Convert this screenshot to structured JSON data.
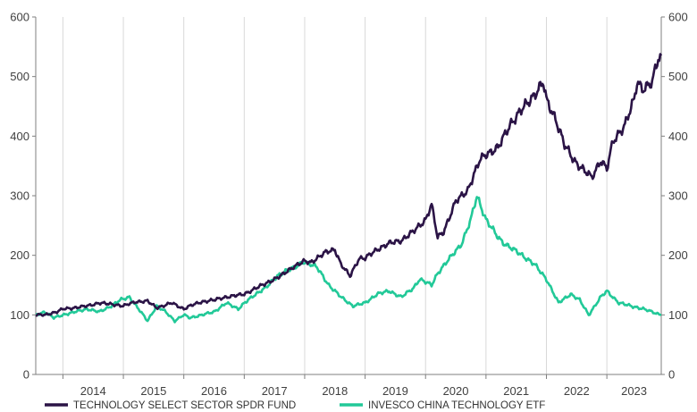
{
  "chart_data": {
    "type": "line",
    "title": "",
    "xlabel": "",
    "ylabel": "",
    "ylim": [
      0,
      600
    ],
    "yticks": [
      0,
      100,
      200,
      300,
      400,
      500,
      600
    ],
    "ytick_labels": [
      "0",
      "100",
      "200",
      "300",
      "400",
      "500",
      "600"
    ],
    "xlim": [
      2013.55,
      2023.9
    ],
    "xticks": [
      "2014",
      "2015",
      "2016",
      "2017",
      "2018",
      "2019",
      "2020",
      "2021",
      "2022",
      "2023"
    ],
    "grid": {
      "vertical": true,
      "horizontal": false
    },
    "axes": "dual-y (same scale left and right)",
    "legend_position": "bottom",
    "series": [
      {
        "name": "TECHNOLOGY SELECT SECTOR SPDR FUND",
        "color": "#2b1446",
        "x": [
          2013.55,
          2013.7,
          2013.9,
          2014.0,
          2014.2,
          2014.4,
          2014.6,
          2014.8,
          2015.0,
          2015.2,
          2015.4,
          2015.55,
          2015.65,
          2015.8,
          2016.0,
          2016.1,
          2016.3,
          2016.5,
          2016.7,
          2016.9,
          2017.0,
          2017.2,
          2017.4,
          2017.6,
          2017.8,
          2018.0,
          2018.1,
          2018.2,
          2018.35,
          2018.5,
          2018.6,
          2018.75,
          2018.9,
          2019.0,
          2019.2,
          2019.4,
          2019.6,
          2019.8,
          2020.0,
          2020.1,
          2020.2,
          2020.3,
          2020.5,
          2020.7,
          2020.9,
          2021.0,
          2021.2,
          2021.4,
          2021.6,
          2021.8,
          2021.95,
          2022.0,
          2022.15,
          2022.3,
          2022.45,
          2022.6,
          2022.75,
          2022.9,
          2023.0,
          2023.1,
          2023.3,
          2023.45,
          2023.5,
          2023.6,
          2023.75,
          2023.85,
          2023.9
        ],
        "values": [
          100,
          100,
          105,
          110,
          112,
          115,
          120,
          118,
          115,
          122,
          123,
          112,
          115,
          120,
          110,
          115,
          122,
          125,
          130,
          133,
          135,
          145,
          155,
          165,
          180,
          190,
          188,
          195,
          205,
          210,
          185,
          165,
          195,
          195,
          210,
          220,
          225,
          240,
          260,
          285,
          230,
          240,
          290,
          310,
          360,
          370,
          380,
          420,
          445,
          470,
          490,
          460,
          430,
          385,
          360,
          345,
          330,
          360,
          345,
          390,
          420,
          460,
          490,
          480,
          490,
          530,
          535
        ]
      },
      {
        "name": "INVESCO CHINA TECHNOLOGY ETF",
        "color": "#22c998",
        "x": [
          2013.55,
          2013.7,
          2013.85,
          2014.0,
          2014.2,
          2014.4,
          2014.6,
          2014.8,
          2014.95,
          2015.1,
          2015.25,
          2015.4,
          2015.55,
          2015.7,
          2015.85,
          2016.0,
          2016.1,
          2016.3,
          2016.5,
          2016.7,
          2016.9,
          2017.0,
          2017.2,
          2017.4,
          2017.55,
          2017.7,
          2017.85,
          2018.0,
          2018.2,
          2018.4,
          2018.6,
          2018.8,
          2019.0,
          2019.2,
          2019.4,
          2019.6,
          2019.8,
          2019.9,
          2020.1,
          2020.2,
          2020.4,
          2020.6,
          2020.75,
          2020.85,
          2021.0,
          2021.2,
          2021.3,
          2021.45,
          2021.6,
          2021.8,
          2022.0,
          2022.2,
          2022.4,
          2022.55,
          2022.7,
          2022.9,
          2023.0,
          2023.2,
          2023.4,
          2023.6,
          2023.75,
          2023.9
        ],
        "values": [
          100,
          105,
          95,
          100,
          105,
          110,
          105,
          115,
          125,
          130,
          110,
          90,
          115,
          105,
          90,
          100,
          95,
          100,
          105,
          120,
          110,
          120,
          135,
          150,
          165,
          175,
          180,
          190,
          180,
          150,
          130,
          115,
          120,
          135,
          140,
          130,
          145,
          160,
          150,
          170,
          195,
          220,
          260,
          300,
          260,
          230,
          220,
          210,
          200,
          185,
          160,
          120,
          135,
          125,
          100,
          130,
          140,
          120,
          115,
          110,
          105,
          100
        ]
      }
    ]
  }
}
